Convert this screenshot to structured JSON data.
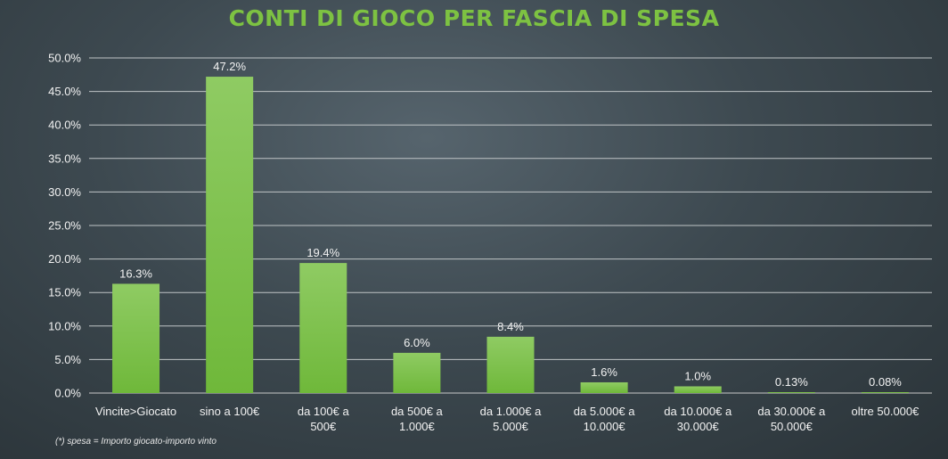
{
  "chart_data": {
    "type": "bar",
    "title": "CONTI DI GIOCO PER FASCIA DI SPESA",
    "categories": [
      [
        "Vincite>Giocato"
      ],
      [
        "sino a 100€"
      ],
      [
        "da 100€ a",
        "500€"
      ],
      [
        "da 500€ a",
        "1.000€"
      ],
      [
        "da 1.000€ a",
        "5.000€"
      ],
      [
        "da 5.000€ a",
        "10.000€"
      ],
      [
        "da 10.000€ a",
        "30.000€"
      ],
      [
        "da 30.000€ a",
        "50.000€"
      ],
      [
        "oltre 50.000€"
      ]
    ],
    "values": [
      16.3,
      47.2,
      19.4,
      6.0,
      8.4,
      1.6,
      1.0,
      0.13,
      0.08
    ],
    "data_labels": [
      "16.3%",
      "47.2%",
      "19.4%",
      "6.0%",
      "8.4%",
      "1.6%",
      "1.0%",
      "0.13%",
      "0.08%"
    ],
    "ylim": [
      0,
      50
    ],
    "yticks": [
      "0.0%",
      "5.0%",
      "10.0%",
      "15.0%",
      "20.0%",
      "25.0%",
      "30.0%",
      "35.0%",
      "40.0%",
      "45.0%",
      "50.0%"
    ],
    "grid": true,
    "bar_color_top": "#8fcb63",
    "bar_color_bottom": "#6fb83a",
    "footnote": "(*) spesa = Importo giocato-importo vinto"
  },
  "title_color": "#7dc242"
}
